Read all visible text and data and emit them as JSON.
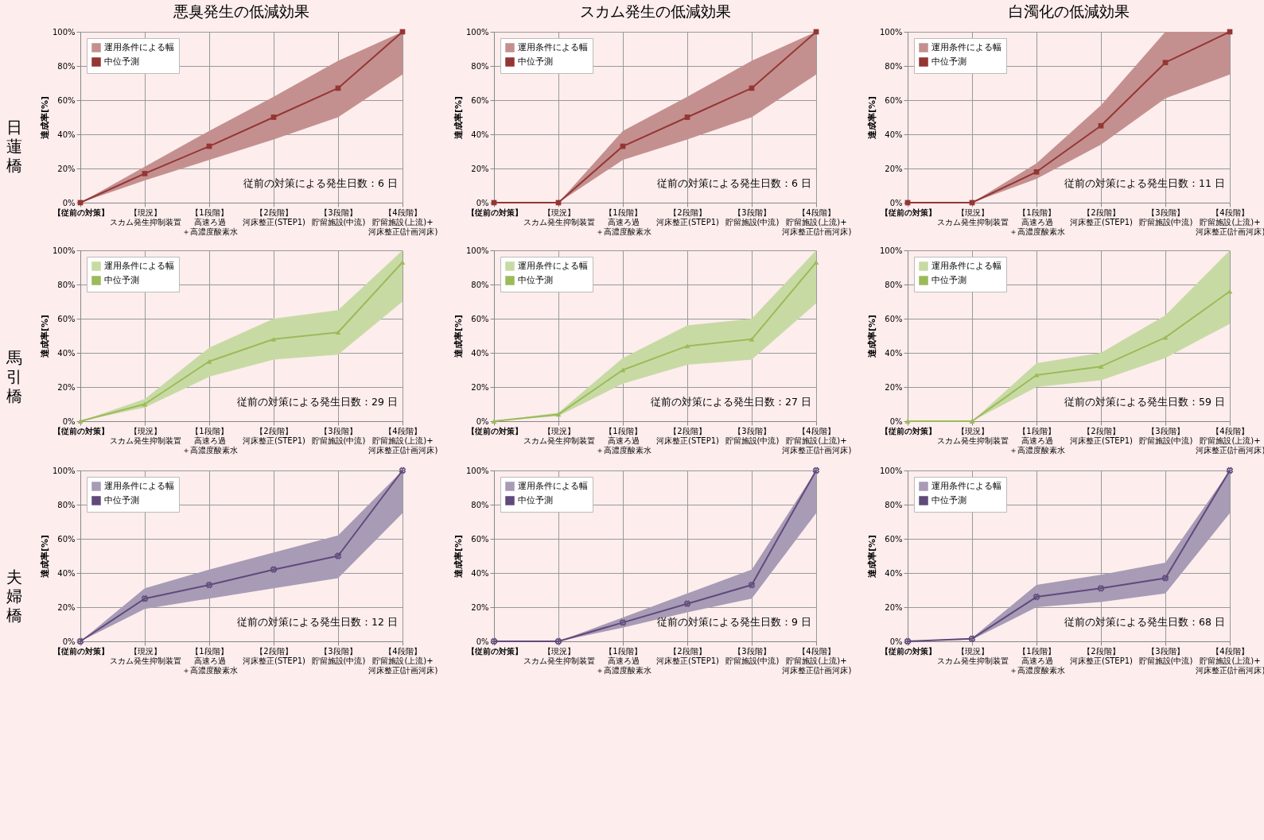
{
  "chart_data": [
    {
      "type": "line",
      "title": "悪臭発生の低減効果",
      "subtitle": "日蓮橋",
      "ylabel": "達成率[%]",
      "categories": [
        "【従前の対策】",
        "【現況】スカム発生抑制装置",
        "【1段階】高速ろ過＋高濃度酸素水",
        "【2段階】河床整正(STEP1)",
        "【3段階】貯留施設(中流)",
        "【4段階】貯留施設(上流)+河床整正(計画河床)"
      ],
      "series": [
        {
          "name": "中位予測",
          "color": "#943634",
          "values": [
            0,
            17,
            33,
            50,
            67,
            100
          ],
          "lower": [
            0,
            13,
            25,
            37,
            50,
            75
          ],
          "upper": [
            0,
            21,
            42,
            62,
            83,
            100
          ]
        }
      ],
      "ylim": [
        0,
        100
      ],
      "yticks": [
        {
          "value": 0,
          "label": "0%"
        },
        {
          "value": 20,
          "label": "20%"
        },
        {
          "value": 40,
          "label": "40%"
        },
        {
          "value": 60,
          "label": "60%"
        },
        {
          "value": 80,
          "label": "80%"
        },
        {
          "value": 100,
          "label": "100%"
        }
      ],
      "grid": true,
      "legend": "top left",
      "marker": "square",
      "annotations": [
        "運用条件による幅",
        "従前の対策による発生日数：6 日"
      ]
    },
    {
      "type": "line",
      "title": "スカム発生の低減効果",
      "ylabel": "達成率[%]",
      "categories": [
        "【従前の対策】",
        "【現況】スカム発生抑制装置",
        "【1段階】高速ろ過＋高濃度酸素水",
        "【2段階】河床整正(STEP1)",
        "【3段階】貯留施設(中流)",
        "【4段階】貯留施設(上流)+河床整正(計画河床)"
      ],
      "series": [
        {
          "name": "中位予測",
          "color": "#943634",
          "values": [
            0,
            0,
            33,
            50,
            67,
            100
          ],
          "lower": [
            0,
            0,
            25,
            37,
            50,
            75
          ],
          "upper": [
            0,
            0,
            42,
            62,
            83,
            100
          ]
        }
      ],
      "ylim": [
        0,
        100
      ],
      "yticks": [
        {
          "value": 0,
          "label": "0%"
        },
        {
          "value": 20,
          "label": "20%"
        },
        {
          "value": 40,
          "label": "40%"
        },
        {
          "value": 60,
          "label": "60%"
        },
        {
          "value": 80,
          "label": "80%"
        },
        {
          "value": 100,
          "label": "100%"
        }
      ],
      "grid": true,
      "legend": "top left",
      "marker": "square",
      "annotations": [
        "運用条件による幅",
        "従前の対策による発生日数：6 日"
      ]
    },
    {
      "type": "line",
      "title": "白濁化の低減効果",
      "ylabel": "達成率[%]",
      "categories": [
        "【従前の対策】",
        "【現況】スカム発生抑制装置",
        "【1段階】高速ろ過＋高濃度酸素水",
        "【2段階】河床整正(STEP1)",
        "【3段階】貯留施設(中流)",
        "【4段階】貯留施設(上流)+河床整正(計画河床)"
      ],
      "series": [
        {
          "name": "中位予測",
          "color": "#943634",
          "values": [
            0,
            0,
            18,
            45,
            82,
            100
          ],
          "lower": [
            0,
            0,
            14,
            34,
            61,
            75
          ],
          "upper": [
            0,
            0,
            23,
            57,
            100,
            100
          ]
        }
      ],
      "ylim": [
        0,
        100
      ],
      "yticks": [
        {
          "value": 0,
          "label": "0%"
        },
        {
          "value": 20,
          "label": "20%"
        },
        {
          "value": 40,
          "label": "40%"
        },
        {
          "value": 60,
          "label": "60%"
        },
        {
          "value": 80,
          "label": "80%"
        },
        {
          "value": 100,
          "label": "100%"
        }
      ],
      "grid": true,
      "legend": "top left",
      "marker": "square",
      "annotations": [
        "運用条件による幅",
        "従前の対策による発生日数：11 日"
      ]
    },
    {
      "type": "line",
      "subtitle": "馬引橋",
      "ylabel": "達成率[%]",
      "categories": [
        "【従前の対策】",
        "【現況】スカム発生抑制装置",
        "【1段階】高速ろ過＋高濃度酸素水",
        "【2段階】河床整正(STEP1)",
        "【3段階】貯留施設(中流)",
        "【4段階】貯留施設(上流)+河床整正(計画河床)"
      ],
      "series": [
        {
          "name": "中位予測",
          "color": "#9bbb59",
          "values": [
            0,
            10,
            35,
            48,
            52,
            93
          ],
          "lower": [
            0,
            8,
            26,
            36,
            39,
            70
          ],
          "upper": [
            0,
            13,
            43,
            60,
            65,
            100
          ]
        }
      ],
      "ylim": [
        0,
        100
      ],
      "yticks": [
        {
          "value": 0,
          "label": "0%"
        },
        {
          "value": 20,
          "label": "20%"
        },
        {
          "value": 40,
          "label": "40%"
        },
        {
          "value": 60,
          "label": "60%"
        },
        {
          "value": 80,
          "label": "80%"
        },
        {
          "value": 100,
          "label": "100%"
        }
      ],
      "grid": true,
      "legend": "top left",
      "marker": "triangle",
      "annotations": [
        "運用条件による幅",
        "従前の対策による発生日数：29 日"
      ]
    },
    {
      "type": "line",
      "ylabel": "達成率[%]",
      "categories": [
        "【従前の対策】",
        "【現況】スカム発生抑制装置",
        "【1段階】高速ろ過＋高濃度酸素水",
        "【2段階】河床整正(STEP1)",
        "【3段階】貯留施設(中流)",
        "【4段階】貯留施設(上流)+河床整正(計画河床)"
      ],
      "series": [
        {
          "name": "中位予測",
          "color": "#9bbb59",
          "values": [
            0,
            4,
            30,
            44,
            48,
            93
          ],
          "lower": [
            0,
            3,
            22,
            33,
            36,
            69
          ],
          "upper": [
            0,
            5,
            37,
            56,
            60,
            100
          ]
        }
      ],
      "ylim": [
        0,
        100
      ],
      "yticks": [
        {
          "value": 0,
          "label": "0%"
        },
        {
          "value": 20,
          "label": "20%"
        },
        {
          "value": 40,
          "label": "40%"
        },
        {
          "value": 60,
          "label": "60%"
        },
        {
          "value": 80,
          "label": "80%"
        },
        {
          "value": 100,
          "label": "100%"
        }
      ],
      "grid": true,
      "legend": "top left",
      "marker": "triangle",
      "annotations": [
        "運用条件による幅",
        "従前の対策による発生日数：27 日"
      ]
    },
    {
      "type": "line",
      "ylabel": "達成率[%]",
      "categories": [
        "【従前の対策】",
        "【現況】スカム発生抑制装置",
        "【1段階】高速ろ過＋高濃度酸素水",
        "【2段階】河床整正(STEP1)",
        "【3段階】貯留施設(中流)",
        "【4段階】貯留施設(上流)+河床整正(計画河床)"
      ],
      "series": [
        {
          "name": "中位予測",
          "color": "#9bbb59",
          "values": [
            0,
            0,
            27,
            32,
            49,
            76
          ],
          "lower": [
            0,
            0,
            20,
            24,
            37,
            57
          ],
          "upper": [
            0,
            0,
            34,
            40,
            62,
            100
          ]
        }
      ],
      "ylim": [
        0,
        100
      ],
      "yticks": [
        {
          "value": 0,
          "label": "0%"
        },
        {
          "value": 20,
          "label": "20%"
        },
        {
          "value": 40,
          "label": "40%"
        },
        {
          "value": 60,
          "label": "60%"
        },
        {
          "value": 80,
          "label": "80%"
        },
        {
          "value": 100,
          "label": "100%"
        }
      ],
      "grid": true,
      "legend": "top left",
      "marker": "triangle",
      "annotations": [
        "運用条件による幅",
        "従前の対策による発生日数：59 日"
      ]
    },
    {
      "type": "line",
      "subtitle": "夫婦橋",
      "ylabel": "達成率[%]",
      "categories": [
        "【従前の対策】",
        "【現況】スカム発生抑制装置",
        "【1段階】高速ろ過＋高濃度酸素水",
        "【2段階】河床整正(STEP1)",
        "【3段階】貯留施設(中流)",
        "【4段階】貯留施設(上流)+河床整正(計画河床)"
      ],
      "series": [
        {
          "name": "中位予測",
          "color": "#604a7b",
          "values": [
            0,
            25,
            33,
            42,
            50,
            100
          ],
          "lower": [
            0,
            19,
            25,
            31,
            37,
            75
          ],
          "upper": [
            0,
            31,
            42,
            52,
            62,
            100
          ]
        }
      ],
      "ylim": [
        0,
        100
      ],
      "yticks": [
        {
          "value": 0,
          "label": "0%"
        },
        {
          "value": 20,
          "label": "20%"
        },
        {
          "value": 40,
          "label": "40%"
        },
        {
          "value": 60,
          "label": "60%"
        },
        {
          "value": 80,
          "label": "80%"
        },
        {
          "value": 100,
          "label": "100%"
        }
      ],
      "grid": true,
      "legend": "top left",
      "marker": "cross",
      "annotations": [
        "運用条件による幅",
        "従前の対策による発生日数：12 日"
      ]
    },
    {
      "type": "line",
      "ylabel": "達成率[%]",
      "categories": [
        "【従前の対策】",
        "【現況】スカム発生抑制装置",
        "【1段階】高速ろ過＋高濃度酸素水",
        "【2段階】河床整正(STEP1)",
        "【3段階】貯留施設(中流)",
        "【4段階】貯留施設(上流)+河床整正(計画河床)"
      ],
      "series": [
        {
          "name": "中位予測",
          "color": "#604a7b",
          "values": [
            0,
            0,
            11,
            22,
            33,
            100
          ],
          "lower": [
            0,
            0,
            8,
            17,
            25,
            75
          ],
          "upper": [
            0,
            0,
            14,
            28,
            42,
            100
          ]
        }
      ],
      "ylim": [
        0,
        100
      ],
      "yticks": [
        {
          "value": 0,
          "label": "0%"
        },
        {
          "value": 20,
          "label": "20%"
        },
        {
          "value": 40,
          "label": "40%"
        },
        {
          "value": 60,
          "label": "60%"
        },
        {
          "value": 80,
          "label": "80%"
        },
        {
          "value": 100,
          "label": "100%"
        }
      ],
      "grid": true,
      "legend": "top left",
      "marker": "cross",
      "annotations": [
        "運用条件による幅",
        "従前の対策による発生日数：9 日"
      ]
    },
    {
      "type": "line",
      "ylabel": "達成率[%]",
      "categories": [
        "【従前の対策】",
        "【現況】スカム発生抑制装置",
        "【1段階】高速ろ過＋高濃度酸素水",
        "【2段階】河床整正(STEP1)",
        "【3段階】貯留施設(中流)",
        "【4段階】貯留施設(上流)+河床整正(計画河床)"
      ],
      "series": [
        {
          "name": "中位予測",
          "color": "#604a7b",
          "values": [
            0,
            1.5,
            26,
            31,
            37,
            100
          ],
          "lower": [
            0,
            1,
            20,
            23,
            28,
            75
          ],
          "upper": [
            0,
            2,
            33,
            39,
            46,
            100
          ]
        }
      ],
      "ylim": [
        0,
        100
      ],
      "yticks": [
        {
          "value": 0,
          "label": "0%"
        },
        {
          "value": 20,
          "label": "20%"
        },
        {
          "value": 40,
          "label": "40%"
        },
        {
          "value": 60,
          "label": "60%"
        },
        {
          "value": 80,
          "label": "80%"
        },
        {
          "value": 100,
          "label": "100%"
        }
      ],
      "grid": true,
      "legend": "top left",
      "marker": "cross",
      "annotations": [
        "運用条件による幅",
        "従前の対策による発生日数：68 日"
      ]
    }
  ]
}
